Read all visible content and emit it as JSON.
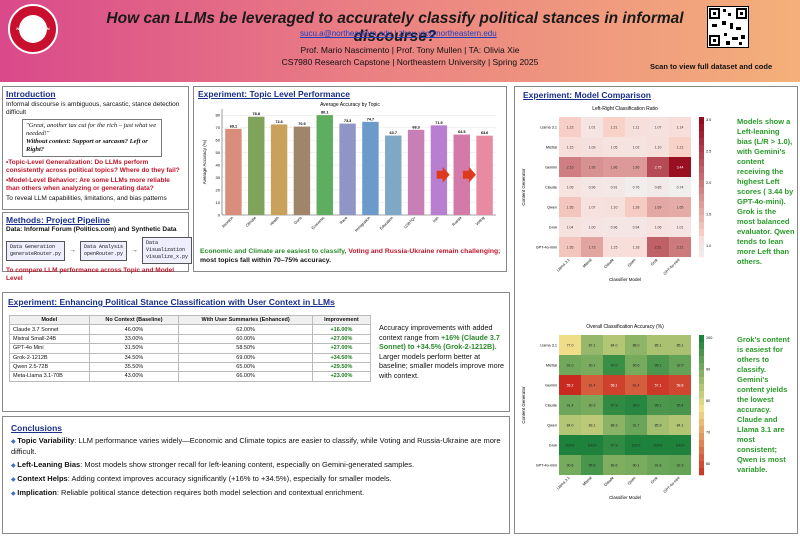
{
  "header": {
    "title": "How can LLMs be leveraged to accurately classify political stances in informal discourse?",
    "emails": "sucu.a@northeastern.edu | zhou.yix@northeastern.edu",
    "advisors": "Prof. Mario Nascimento | Prof. Tony Mullen | TA: Olivia Xie",
    "course": "CS7980 Research Capstone | Northeastern University | Spring 2025",
    "logo_text": "NORTHEASTERN UNIVERSITY",
    "qr_caption": "Scan to view full dataset and code"
  },
  "intro": {
    "title": "Introduction",
    "text1": "Informal discourse is ambiguous, sarcastic, stance detection difficult",
    "quote1": "\"Great, another tax cut for the rich – just what we needed!\"",
    "quote2": "Without context: Support or sarcasm? Left or Right?",
    "bullet1": "•Topic-Level Generalization: Do LLMs perform consistently across political topics? Where do they fail?",
    "bullet2": "•Model-Level Behavior: Are some LLMs more reliable than others when analyzing or generating data?",
    "text2": "To reveal LLM capabilities, limitations, and bias patterns"
  },
  "methods": {
    "title": "Methods: Project Pipeline",
    "data": "Data: Informal Forum (Politics.com) and Synthetic Data",
    "box1": "Data Generation",
    "box1_file": "generateRouter.py",
    "box2": "Data Analysis",
    "box2_file": "openRouter.py",
    "box3": "Data Visualization",
    "box3_file": "visualize_x.py",
    "footer": "To compare LLM performance across Topic and Model Level"
  },
  "topic": {
    "title": "Experiment: Topic Level  Performance",
    "caption1": "Economic and Climate are easiest to classify, ",
    "caption2": "Voting and Russia-Ukraine remain challenging;",
    "caption3": "most topics fall within 70–75% accuracy."
  },
  "chart_data": [
    {
      "type": "bar",
      "title": "Average Accuracy by Topic",
      "xlabel": "",
      "ylabel": "Average Accuracy (%)",
      "ylim": [
        0,
        85
      ],
      "categories": [
        "Abortion",
        "Climate",
        "Health",
        "Guns",
        "Economic",
        "Race",
        "Immigration",
        "Education",
        "LGBTQ+",
        "Iran",
        "Russia",
        "Voting"
      ],
      "values": [
        69.1,
        78.8,
        72.6,
        70.9,
        80.1,
        73.3,
        74.7,
        63.7,
        68.3,
        71.9,
        64.5,
        63.6
      ],
      "labels": [
        "69.1",
        "78.8",
        "72.6",
        "70.9",
        "80.1",
        "73.3",
        "74.7",
        "63.7",
        "68.3",
        "71.9",
        "64.5",
        "63.6"
      ],
      "colors": [
        "#d98e7c",
        "#7fa35a",
        "#c9a15a",
        "#a0856a",
        "#5fae5f",
        "#8f95c4",
        "#6b9bc8",
        "#7fa7c6",
        "#c77fb5",
        "#b87fd0",
        "#d47aa8",
        "#e88aa2"
      ]
    },
    {
      "type": "heatmap",
      "title": "Left-Right Classification Ratio",
      "xlabel": "Classifier Model",
      "ylabel": "Content Generator",
      "rows": [
        "Llama 3.1",
        "Mistral",
        "Gemini",
        "Claude",
        "Qwen",
        "Grok",
        "GPT-4o-mini"
      ],
      "columns": [
        "Llama 3.1",
        "Mistral",
        "Claude",
        "Qwen",
        "Grok",
        "GPT-4o-mini"
      ],
      "values": [
        [
          1.23,
          1.01,
          1.21,
          1.11,
          1.07,
          1.14
        ],
        [
          1.15,
          1.09,
          1.05,
          1.02,
          1.1,
          1.21
        ],
        [
          2.16,
          1.95,
          1.86,
          1.86,
          2.75,
          3.44
        ],
        [
          1.05,
          0.96,
          0.91,
          0.76,
          0.85,
          0.74
        ],
        [
          1.35,
          1.07,
          1.1,
          1.28,
          1.69,
          1.65
        ],
        [
          1.04,
          1.0,
          0.96,
          0.94,
          1.06,
          1.01
        ],
        [
          1.35,
          1.73,
          1.15,
          1.18,
          2.51,
          2.21
        ]
      ],
      "colorbar_ticks": [
        "3.0",
        "2.5",
        "2.0",
        "1.5",
        "1.0"
      ]
    },
    {
      "type": "heatmap",
      "title": "Overall Classification Accuracy (%)",
      "xlabel": "Classifier Model",
      "ylabel": "Content Generator",
      "rows": [
        "Llama 3.1",
        "Mistral",
        "Gemini",
        "Claude",
        "Qwen",
        "Grok",
        "GPT-4o-mini"
      ],
      "columns": [
        "Llama 3.1",
        "Mistral",
        "Claude",
        "Qwen",
        "Grok",
        "GPT-4o-mini"
      ],
      "values": [
        [
          77.0,
          87.1,
          84.0,
          88.0,
          85.1,
          85.1
        ],
        [
          91.0,
          90.1,
          97.0,
          90.6,
          95.1,
          92.5
        ],
        [
          55.2,
          61.4,
          58.1,
          61.4,
          57.1,
          58.8
        ],
        [
          91.4,
          90.3,
          97.9,
          99.0,
          95.1,
          95.4
        ],
        [
          84.0,
          83.1,
          88.3,
          91.7,
          85.9,
          84.1
        ],
        [
          100.0,
          100.0,
          97.9,
          100.0,
          100.0,
          100.0
        ],
        [
          90.6,
          95.5,
          89.6,
          90.1,
          91.8,
          92.3
        ]
      ],
      "colorbar_ticks": [
        "100",
        "90",
        "80",
        "70",
        "60"
      ]
    }
  ],
  "enhance": {
    "title": "Experiment: Enhancing Political Stance Classification with User Context in LLMs",
    "headers": [
      "Model",
      "No Context (Baseline)",
      "With User Summaries (Enhanced)",
      "Improvement"
    ],
    "rows": [
      [
        "Claude 3.7 Sonnet",
        "46.00%",
        "62.00%",
        "+16.00%"
      ],
      [
        "Mistral Small-24B",
        "33.00%",
        "60.00%",
        "+27.00%"
      ],
      [
        "GPT-4o Mini",
        "31.50%",
        "58.50%",
        "+27.00%"
      ],
      [
        "Grok-2-1212B",
        "34.50%",
        "69.00%",
        "+34.50%"
      ],
      [
        "Qwen 2.5-72B",
        "35.50%",
        "65.00%",
        "+29.50%"
      ],
      [
        "Meta-Llama 3.1-70B",
        "43.00%",
        "66.00%",
        "+23.00%"
      ]
    ],
    "note1": "Accuracy improvements with added context range from ",
    "note2": "+16% (Claude 3.7 Sonnet) to +34.5% (Grok-2-1212B).",
    "note3": " Larger models perform better at baseline; smaller models improve more with context."
  },
  "conclusions": {
    "title": "Conclusions",
    "items": [
      {
        "lead": "Topic Variability",
        "text": ": LLM performance varies widely—Economic and Climate topics are easier to classify, while Voting and Russia-Ukraine are more difficult."
      },
      {
        "lead": "Left-Leaning Bias",
        "text": ": Most models show stronger recall for left-leaning content, especially on Gemini-generated samples."
      },
      {
        "lead": "Context Helps",
        "text": ": Adding context improves accuracy significantly (+16% to +34.5%), especially for smaller models."
      },
      {
        "lead": "Implication",
        "text": ": Reliable political stance detection requires both model selection and contextual enrichment."
      }
    ]
  },
  "model_comp": {
    "title": "Experiment: Model Comparison",
    "side1": "Models show a Left-leaning bias (L/R > 1.0), with Gemini's content receiving the highest Left scores ( 3.44 by GPT-4o-mini). Grok is the most balanced evaluator. Qwen tends to lean more Left than others.",
    "side2": "Grok's content is easiest for others to classify. Gemini's content yields the lowest accuracy. Claude and Llama 3.1 are most consistent; Qwen is most variable."
  }
}
